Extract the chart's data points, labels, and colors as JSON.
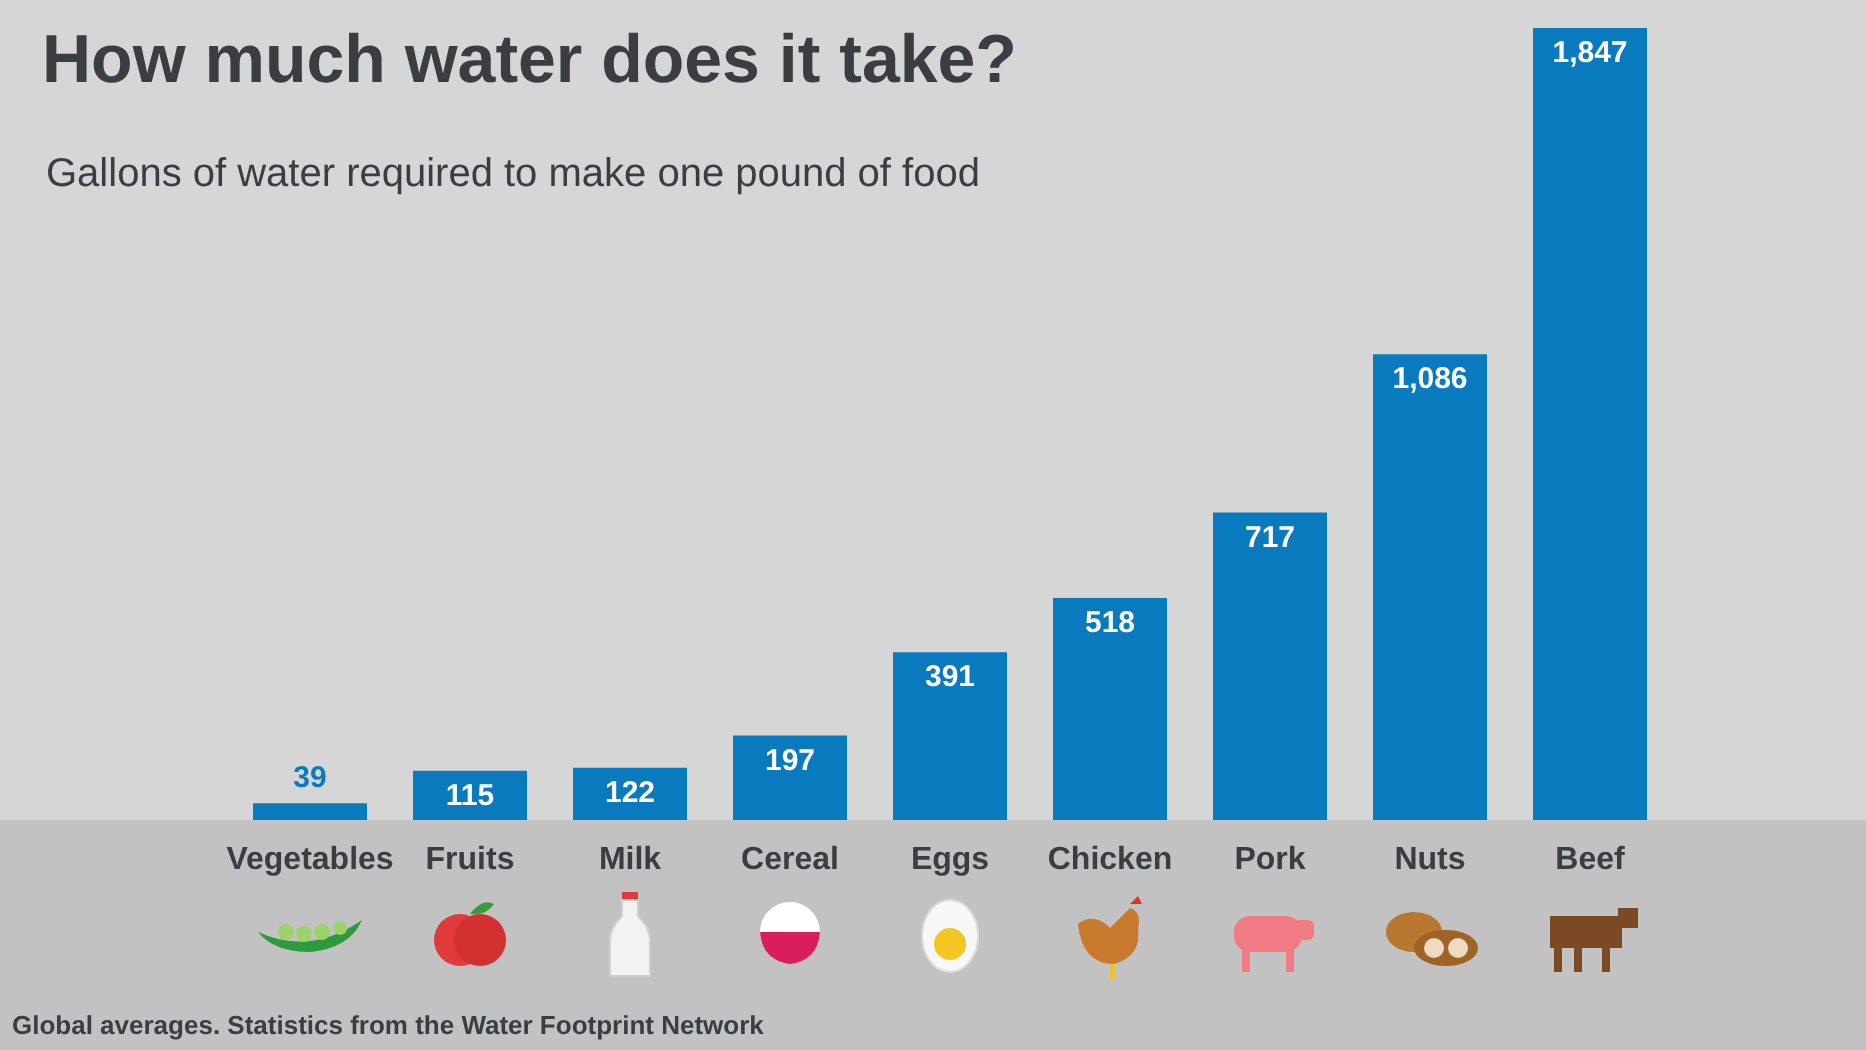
{
  "chart_data": {
    "type": "bar",
    "title": "How much water does it take?",
    "subtitle": "Gallons of water required to make one pound of food",
    "categories": [
      "Vegetables",
      "Fruits",
      "Milk",
      "Cereal",
      "Eggs",
      "Chicken",
      "Pork",
      "Nuts",
      "Beef"
    ],
    "values": [
      39,
      115,
      122,
      197,
      391,
      518,
      717,
      1086,
      1847
    ],
    "color": "#0a7abf",
    "value_labels": [
      "39",
      "115",
      "122",
      "197",
      "391",
      "518",
      "717",
      "1,086",
      "1,847"
    ],
    "grid": false,
    "annotations": [
      "Global averages. Statistics from the Water Footprint Network"
    ]
  }
}
